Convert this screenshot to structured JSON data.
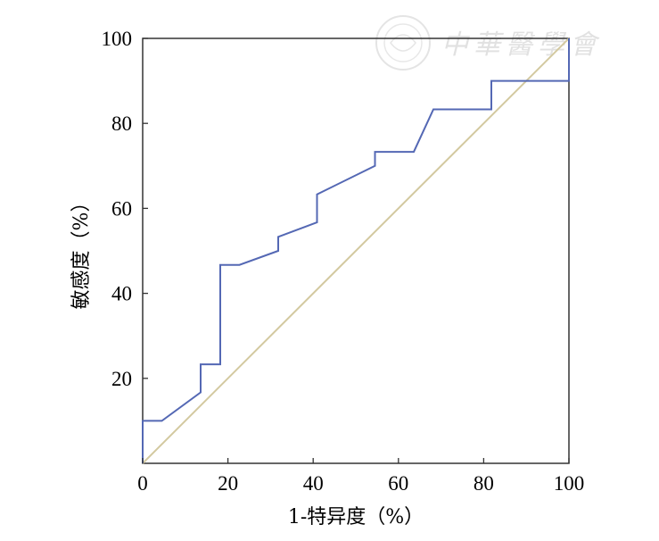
{
  "chart_data": {
    "type": "line",
    "xlabel": "1-特异度（%）",
    "ylabel": "敏感度（%）",
    "xlim": [
      0,
      100
    ],
    "ylim": [
      0,
      100
    ],
    "x_ticks": [
      "0",
      "20",
      "40",
      "60",
      "80",
      "100"
    ],
    "y_ticks": [
      "20",
      "40",
      "60",
      "80",
      "100"
    ],
    "grid": false,
    "series": [
      {
        "color": "#5468b4",
        "x": [
          0,
          0,
          4.5,
          13.6,
          13.6,
          18.2,
          18.2,
          22.7,
          31.8,
          31.8,
          40.9,
          40.9,
          54.5,
          54.5,
          63.6,
          68.2,
          81.8,
          81.8,
          100,
          100
        ],
        "y": [
          0,
          10,
          10,
          16.7,
          23.3,
          23.3,
          46.7,
          46.7,
          50,
          53.3,
          56.7,
          63.3,
          70,
          73.3,
          73.3,
          83.3,
          83.3,
          90,
          90,
          100
        ]
      },
      {
        "color": "#d3c9a0",
        "x": [
          0,
          100
        ],
        "y": [
          0,
          100
        ]
      }
    ]
  },
  "watermark": {
    "text": "中華醫學會"
  }
}
